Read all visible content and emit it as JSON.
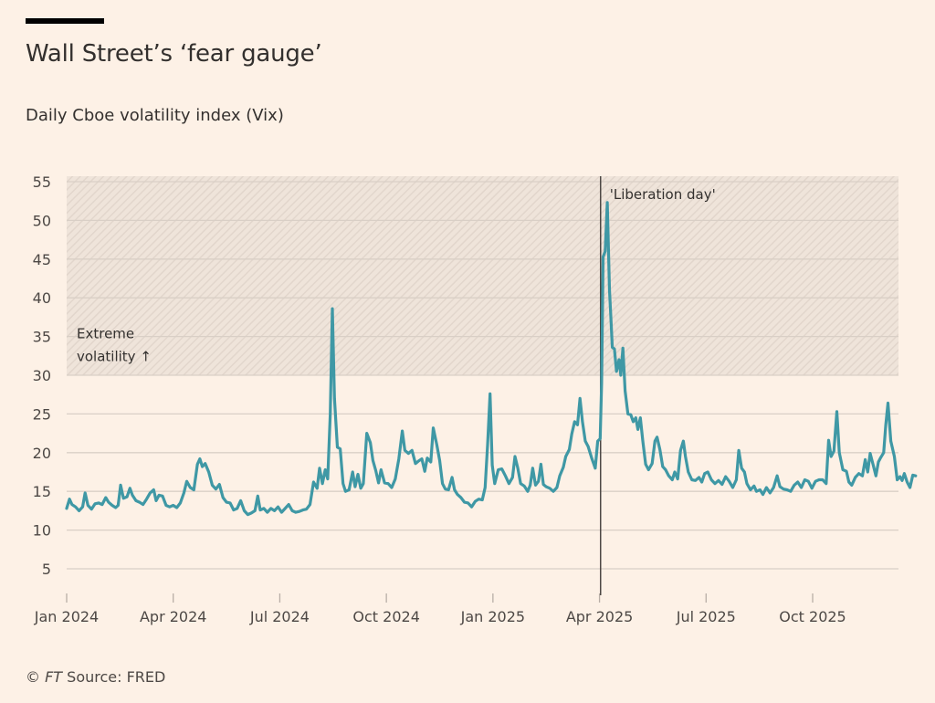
{
  "header": {
    "title": "Wall Street’s ‘fear gauge’",
    "subtitle": "Daily Cboe volatility index (Vix)"
  },
  "footer": {
    "copyright": "©",
    "brand": "FT",
    "source": "Source: FRED"
  },
  "colors": {
    "background": "#fdf1e6",
    "line": "#3f98a5",
    "grid": "#d9cfc6",
    "shade": "#eee2d8",
    "hatch": "#e2d6cc",
    "event_line": "#4d4845"
  },
  "chart_data": {
    "type": "line",
    "title": "Wall Street’s ‘fear gauge’",
    "subtitle": "Daily Cboe volatility index (Vix)",
    "xlabel": "",
    "ylabel": "",
    "ylim": [
      0,
      55
    ],
    "yticks": [
      5,
      10,
      15,
      20,
      25,
      30,
      35,
      40,
      45,
      50,
      55
    ],
    "x_unit": "months since Jan 2024",
    "xlim": [
      0,
      23.6
    ],
    "xticks": [
      {
        "value": 0,
        "label": "Jan 2024"
      },
      {
        "value": 3,
        "label": "Apr 2024"
      },
      {
        "value": 6,
        "label": "Jul 2024"
      },
      {
        "value": 9,
        "label": "Oct 2024"
      },
      {
        "value": 12,
        "label": "Jan 2025"
      },
      {
        "value": 15,
        "label": "Apr 2025"
      },
      {
        "value": 18,
        "label": "Jul 2025"
      },
      {
        "value": 21,
        "label": "Oct 2025"
      }
    ],
    "grid": true,
    "shaded_region": {
      "from": 30,
      "to": 55,
      "label_line1": "Extreme",
      "label_line2": "volatility ↑"
    },
    "event": {
      "x": 15.03,
      "label": "'Liberation day'"
    },
    "series": [
      {
        "name": "Vix",
        "points": [
          [
            0.0,
            12.8
          ],
          [
            0.08,
            14.0
          ],
          [
            0.15,
            13.3
          ],
          [
            0.25,
            13.0
          ],
          [
            0.35,
            12.5
          ],
          [
            0.45,
            13.0
          ],
          [
            0.52,
            14.8
          ],
          [
            0.6,
            13.2
          ],
          [
            0.7,
            12.7
          ],
          [
            0.8,
            13.4
          ],
          [
            0.9,
            13.5
          ],
          [
            1.0,
            13.3
          ],
          [
            1.1,
            14.2
          ],
          [
            1.18,
            13.6
          ],
          [
            1.28,
            13.2
          ],
          [
            1.38,
            12.9
          ],
          [
            1.45,
            13.2
          ],
          [
            1.52,
            15.8
          ],
          [
            1.6,
            14.1
          ],
          [
            1.7,
            14.3
          ],
          [
            1.78,
            15.4
          ],
          [
            1.85,
            14.5
          ],
          [
            1.95,
            13.8
          ],
          [
            2.05,
            13.6
          ],
          [
            2.15,
            13.3
          ],
          [
            2.25,
            14.0
          ],
          [
            2.35,
            14.8
          ],
          [
            2.45,
            15.2
          ],
          [
            2.52,
            13.8
          ],
          [
            2.6,
            14.5
          ],
          [
            2.7,
            14.4
          ],
          [
            2.8,
            13.2
          ],
          [
            2.9,
            13.0
          ],
          [
            3.0,
            13.2
          ],
          [
            3.1,
            12.9
          ],
          [
            3.2,
            13.5
          ],
          [
            3.3,
            14.8
          ],
          [
            3.38,
            16.3
          ],
          [
            3.48,
            15.5
          ],
          [
            3.58,
            15.2
          ],
          [
            3.68,
            18.5
          ],
          [
            3.75,
            19.2
          ],
          [
            3.82,
            18.2
          ],
          [
            3.9,
            18.6
          ],
          [
            4.0,
            17.5
          ],
          [
            4.1,
            15.8
          ],
          [
            4.2,
            15.3
          ],
          [
            4.3,
            15.9
          ],
          [
            4.4,
            14.2
          ],
          [
            4.5,
            13.6
          ],
          [
            4.6,
            13.5
          ],
          [
            4.7,
            12.6
          ],
          [
            4.8,
            12.8
          ],
          [
            4.9,
            13.8
          ],
          [
            5.0,
            12.5
          ],
          [
            5.1,
            12.0
          ],
          [
            5.2,
            12.2
          ],
          [
            5.3,
            12.5
          ],
          [
            5.38,
            14.4
          ],
          [
            5.45,
            12.6
          ],
          [
            5.55,
            12.8
          ],
          [
            5.65,
            12.3
          ],
          [
            5.75,
            12.8
          ],
          [
            5.85,
            12.5
          ],
          [
            5.95,
            13.0
          ],
          [
            6.05,
            12.3
          ],
          [
            6.15,
            12.8
          ],
          [
            6.25,
            13.3
          ],
          [
            6.35,
            12.5
          ],
          [
            6.45,
            12.3
          ],
          [
            6.55,
            12.4
          ],
          [
            6.65,
            12.6
          ],
          [
            6.75,
            12.7
          ],
          [
            6.85,
            13.3
          ],
          [
            6.95,
            16.2
          ],
          [
            7.05,
            15.4
          ],
          [
            7.12,
            18.0
          ],
          [
            7.2,
            16.0
          ],
          [
            7.28,
            17.8
          ],
          [
            7.35,
            16.6
          ],
          [
            7.42,
            25.0
          ],
          [
            7.48,
            38.6
          ],
          [
            7.54,
            27.0
          ],
          [
            7.62,
            20.7
          ],
          [
            7.7,
            20.5
          ],
          [
            7.78,
            16.0
          ],
          [
            7.85,
            15.0
          ],
          [
            7.95,
            15.2
          ],
          [
            8.05,
            17.5
          ],
          [
            8.12,
            15.6
          ],
          [
            8.2,
            17.2
          ],
          [
            8.28,
            15.4
          ],
          [
            8.35,
            16.0
          ],
          [
            8.45,
            22.5
          ],
          [
            8.55,
            21.3
          ],
          [
            8.62,
            19.0
          ],
          [
            8.7,
            17.7
          ],
          [
            8.78,
            16.1
          ],
          [
            8.85,
            17.8
          ],
          [
            8.95,
            16.1
          ],
          [
            9.05,
            16.0
          ],
          [
            9.15,
            15.5
          ],
          [
            9.25,
            16.6
          ],
          [
            9.35,
            19.2
          ],
          [
            9.45,
            22.8
          ],
          [
            9.52,
            20.3
          ],
          [
            9.62,
            19.9
          ],
          [
            9.72,
            20.3
          ],
          [
            9.82,
            18.6
          ],
          [
            9.9,
            18.9
          ],
          [
            10.0,
            19.2
          ],
          [
            10.08,
            17.6
          ],
          [
            10.15,
            19.3
          ],
          [
            10.25,
            18.8
          ],
          [
            10.32,
            23.2
          ],
          [
            10.42,
            21.0
          ],
          [
            10.5,
            19.0
          ],
          [
            10.58,
            16.0
          ],
          [
            10.66,
            15.3
          ],
          [
            10.75,
            15.2
          ],
          [
            10.85,
            16.8
          ],
          [
            10.92,
            15.2
          ],
          [
            11.0,
            14.6
          ],
          [
            11.1,
            14.2
          ],
          [
            11.2,
            13.6
          ],
          [
            11.3,
            13.5
          ],
          [
            11.4,
            13.0
          ],
          [
            11.5,
            13.7
          ],
          [
            11.6,
            14.0
          ],
          [
            11.7,
            13.9
          ],
          [
            11.78,
            15.5
          ],
          [
            11.85,
            21.0
          ],
          [
            11.92,
            27.6
          ],
          [
            11.98,
            18.4
          ],
          [
            12.05,
            16.0
          ],
          [
            12.15,
            17.8
          ],
          [
            12.25,
            17.9
          ],
          [
            12.35,
            17.0
          ],
          [
            12.45,
            16.0
          ],
          [
            12.55,
            16.8
          ],
          [
            12.62,
            19.5
          ],
          [
            12.7,
            18.0
          ],
          [
            12.78,
            16.0
          ],
          [
            12.88,
            15.7
          ],
          [
            12.98,
            15.0
          ],
          [
            13.05,
            15.8
          ],
          [
            13.12,
            18.0
          ],
          [
            13.2,
            15.8
          ],
          [
            13.28,
            16.3
          ],
          [
            13.35,
            18.5
          ],
          [
            13.42,
            15.9
          ],
          [
            13.5,
            15.6
          ],
          [
            13.6,
            15.4
          ],
          [
            13.7,
            15.0
          ],
          [
            13.8,
            15.5
          ],
          [
            13.88,
            17.0
          ],
          [
            13.98,
            18.1
          ],
          [
            14.05,
            19.5
          ],
          [
            14.15,
            20.4
          ],
          [
            14.22,
            22.4
          ],
          [
            14.3,
            24.0
          ],
          [
            14.38,
            23.6
          ],
          [
            14.45,
            27.0
          ],
          [
            14.52,
            24.0
          ],
          [
            14.6,
            21.5
          ],
          [
            14.68,
            20.8
          ],
          [
            14.78,
            19.3
          ],
          [
            14.88,
            18.0
          ],
          [
            14.95,
            21.5
          ],
          [
            15.02,
            21.8
          ],
          [
            15.06,
            29.0
          ],
          [
            15.1,
            45.3
          ],
          [
            15.16,
            46.0
          ],
          [
            15.22,
            52.3
          ],
          [
            15.28,
            41.0
          ],
          [
            15.32,
            37.5
          ],
          [
            15.36,
            33.6
          ],
          [
            15.42,
            33.4
          ],
          [
            15.48,
            30.5
          ],
          [
            15.55,
            32.0
          ],
          [
            15.6,
            30.0
          ],
          [
            15.66,
            33.5
          ],
          [
            15.72,
            28.0
          ],
          [
            15.8,
            25.0
          ],
          [
            15.88,
            24.9
          ],
          [
            15.95,
            24.0
          ],
          [
            16.02,
            24.5
          ],
          [
            16.08,
            23.0
          ],
          [
            16.15,
            24.5
          ],
          [
            16.22,
            21.5
          ],
          [
            16.3,
            18.5
          ],
          [
            16.38,
            17.8
          ],
          [
            16.48,
            18.6
          ],
          [
            16.56,
            21.5
          ],
          [
            16.62,
            22.0
          ],
          [
            16.7,
            20.4
          ],
          [
            16.78,
            18.2
          ],
          [
            16.86,
            17.8
          ],
          [
            16.95,
            17.0
          ],
          [
            17.05,
            16.5
          ],
          [
            17.12,
            17.5
          ],
          [
            17.2,
            16.6
          ],
          [
            17.28,
            20.3
          ],
          [
            17.36,
            21.5
          ],
          [
            17.42,
            19.5
          ],
          [
            17.5,
            17.5
          ],
          [
            17.6,
            16.5
          ],
          [
            17.7,
            16.4
          ],
          [
            17.8,
            16.8
          ],
          [
            17.88,
            16.2
          ],
          [
            17.96,
            17.3
          ],
          [
            18.05,
            17.5
          ],
          [
            18.15,
            16.5
          ],
          [
            18.25,
            16.0
          ],
          [
            18.35,
            16.4
          ],
          [
            18.45,
            15.9
          ],
          [
            18.55,
            16.9
          ],
          [
            18.65,
            16.3
          ],
          [
            18.75,
            15.5
          ],
          [
            18.85,
            16.5
          ],
          [
            18.92,
            20.3
          ],
          [
            19.0,
            18.0
          ],
          [
            19.08,
            17.5
          ],
          [
            19.15,
            16.0
          ],
          [
            19.25,
            15.2
          ],
          [
            19.35,
            15.7
          ],
          [
            19.42,
            15.0
          ],
          [
            19.52,
            15.2
          ],
          [
            19.6,
            14.6
          ],
          [
            19.7,
            15.5
          ],
          [
            19.8,
            14.8
          ],
          [
            19.9,
            15.5
          ],
          [
            20.0,
            17.0
          ],
          [
            20.08,
            15.6
          ],
          [
            20.18,
            15.3
          ],
          [
            20.28,
            15.2
          ],
          [
            20.38,
            15.0
          ],
          [
            20.48,
            15.8
          ],
          [
            20.58,
            16.2
          ],
          [
            20.68,
            15.5
          ],
          [
            20.78,
            16.5
          ],
          [
            20.88,
            16.3
          ],
          [
            20.98,
            15.4
          ],
          [
            21.08,
            16.3
          ],
          [
            21.18,
            16.5
          ],
          [
            21.28,
            16.5
          ],
          [
            21.38,
            16.0
          ],
          [
            21.45,
            21.6
          ],
          [
            21.52,
            19.5
          ],
          [
            21.6,
            20.2
          ],
          [
            21.68,
            25.3
          ],
          [
            21.75,
            20.0
          ],
          [
            21.85,
            17.8
          ],
          [
            21.95,
            17.6
          ],
          [
            22.02,
            16.2
          ],
          [
            22.1,
            15.8
          ],
          [
            22.2,
            16.8
          ],
          [
            22.3,
            17.3
          ],
          [
            22.4,
            17.0
          ],
          [
            22.48,
            19.1
          ],
          [
            22.55,
            17.5
          ],
          [
            22.62,
            19.9
          ],
          [
            22.7,
            18.5
          ],
          [
            22.78,
            17.0
          ],
          [
            22.85,
            18.8
          ],
          [
            22.92,
            19.4
          ],
          [
            23.0,
            20.0
          ],
          [
            23.06,
            23.6
          ],
          [
            23.12,
            26.4
          ],
          [
            23.2,
            21.5
          ],
          [
            23.3,
            19.5
          ],
          [
            23.38,
            16.5
          ],
          [
            23.46,
            16.9
          ],
          [
            23.52,
            16.4
          ],
          [
            23.58,
            17.3
          ],
          [
            23.66,
            16.2
          ],
          [
            23.74,
            15.5
          ],
          [
            23.82,
            17.1
          ],
          [
            23.9,
            17.0
          ]
        ]
      }
    ]
  }
}
